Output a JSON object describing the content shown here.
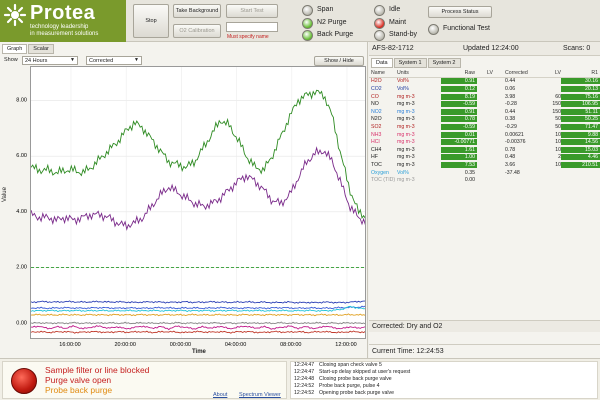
{
  "brand": {
    "name": "Protea",
    "tagline": [
      "technology leadership",
      "in measurement solutions"
    ]
  },
  "toolbar": {
    "stop": "Stop",
    "take_background": "Take Background",
    "o2_calibration": "O2 Calibration",
    "start_test": "Start Test",
    "name_warning": "Must specify name",
    "process_status": "Process Status"
  },
  "indicators": [
    {
      "label": "Span",
      "color": "#b9b8ae"
    },
    {
      "label": "N2 Purge",
      "color": "#5fba2a"
    },
    {
      "label": "Back Purge",
      "color": "#5fba2a"
    },
    {
      "label": "Idle",
      "color": "#b9b8ae"
    },
    {
      "label": "Maint",
      "color": "#d8261b"
    },
    {
      "label": "Stand-by",
      "color": "#b9b8ae"
    },
    {
      "label": "Functional Test",
      "color": "#b9b8ae"
    }
  ],
  "graph": {
    "tabs": [
      "Graph",
      "Scalar"
    ],
    "show_label": "Show",
    "range": "24 Hours",
    "mode": "Corrected",
    "show_hide": "Show / Hide",
    "ylabel": "Value",
    "xlabel": "Time"
  },
  "chart_data": {
    "type": "line",
    "ylabel": "Value",
    "xlabel": "Time",
    "ylim": [
      -0.6,
      9.2
    ],
    "y_ticks": [
      "8.00",
      "6.00",
      "4.00",
      "2.00",
      "0.00"
    ],
    "x_ticks": [
      "16:00:00",
      "20:00:00",
      "00:00:00",
      "04:00:00",
      "08:00:00",
      "12:00:00"
    ],
    "grid": true,
    "series": [
      {
        "color": "#2e8b22",
        "values": [
          5.6,
          5.5,
          5.5,
          5.4,
          5.5,
          5.5,
          5.4,
          5.6,
          5.9,
          6.2,
          6.5,
          6.9,
          7.2,
          7.0,
          6.6,
          6.2,
          5.8,
          5.7,
          5.6,
          5.8,
          6.3,
          6.8,
          7.3,
          7.1,
          6.6,
          6.0,
          5.6,
          5.5,
          6.0,
          6.7,
          7.4,
          8.0,
          8.2,
          8.3,
          8.2,
          7.4,
          6.0,
          4.8,
          4.0,
          3.8
        ]
      },
      {
        "color": "#7a2a8a",
        "values": [
          3.9,
          3.8,
          3.8,
          3.7,
          3.8,
          3.7,
          3.8,
          3.9,
          3.9,
          3.8,
          3.6,
          3.5,
          3.6,
          3.8,
          4.2,
          4.6,
          4.9,
          4.7,
          4.5,
          4.3,
          4.2,
          4.3,
          4.5,
          4.8,
          5.1,
          5.3,
          5.1,
          4.8,
          4.4,
          4.3,
          4.6,
          5.2,
          5.8,
          6.1,
          6.2,
          5.8,
          5.0,
          4.2,
          3.8,
          3.6
        ]
      },
      {
        "color": "#2b3fb5",
        "values": [
          0.75,
          0.78,
          0.77,
          0.76,
          0.78,
          0.77,
          0.76,
          0.77,
          0.78,
          0.76,
          0.77,
          0.76,
          0.75,
          0.76,
          0.77,
          0.76,
          0.75,
          0.76,
          0.77,
          0.75,
          0.76,
          0.77,
          0.76,
          0.75,
          0.76,
          0.77,
          0.75,
          0.76,
          0.74,
          0.75,
          0.76,
          0.74,
          0.75,
          0.74,
          0.76,
          0.75,
          0.74,
          0.76,
          0.78,
          0.8
        ]
      },
      {
        "color": "#3b5bd8",
        "values": [
          0.55,
          0.55,
          0.54,
          0.55,
          0.56,
          0.55,
          0.54,
          0.55,
          0.56,
          0.55,
          0.54,
          0.55,
          0.55,
          0.54,
          0.55,
          0.56,
          0.55,
          0.54,
          0.55,
          0.55,
          0.54,
          0.55,
          0.56,
          0.55,
          0.54,
          0.55,
          0.55,
          0.54,
          0.55,
          0.56,
          0.55,
          0.54,
          0.55,
          0.55,
          0.54,
          0.55,
          0.56,
          0.57,
          0.58,
          0.6
        ]
      },
      {
        "color": "#22c4d8",
        "values": [
          0.45,
          0.45,
          0.46,
          0.45,
          0.45,
          0.46,
          0.45,
          0.45,
          0.46,
          0.45,
          0.45,
          0.46,
          0.45,
          0.45,
          0.46,
          0.45,
          0.45,
          0.46,
          0.45,
          0.45,
          0.46,
          0.45,
          0.45,
          0.46,
          0.45,
          0.45,
          0.46,
          0.45,
          0.45,
          0.46,
          0.45,
          0.45,
          0.46,
          0.45,
          0.45,
          0.46,
          0.5,
          0.6,
          0.55,
          0.5
        ]
      },
      {
        "color": "#e0a020",
        "values": [
          0.3,
          0.31,
          0.3,
          0.3,
          0.31,
          0.3,
          0.3,
          0.31,
          0.3,
          0.3,
          0.31,
          0.3,
          0.3,
          0.31,
          0.3,
          0.3,
          0.31,
          0.3,
          0.3,
          0.31,
          0.3,
          0.3,
          0.31,
          0.3,
          0.3,
          0.31,
          0.3,
          0.3,
          0.31,
          0.3,
          0.3,
          0.31,
          0.3,
          0.3,
          0.31,
          0.3,
          0.3,
          0.31,
          0.3,
          0.3
        ]
      },
      {
        "color": "#888888",
        "values": [
          0.0,
          0.02,
          0.0,
          0.01,
          0.0,
          0.02,
          0.0,
          0.01,
          0.0,
          0.02,
          0.0,
          0.01,
          0.0,
          0.02,
          0.0,
          0.01,
          0.0,
          0.02,
          0.0,
          0.01,
          0.0,
          0.02,
          0.0,
          0.01,
          0.0,
          0.02,
          0.0,
          0.01,
          0.0,
          0.02,
          0.0,
          0.01,
          0.0,
          0.02,
          0.0,
          0.01,
          0.0,
          0.02,
          0.0,
          0.01
        ]
      },
      {
        "color": "#c01a8a",
        "values": [
          -0.15,
          -0.1,
          -0.2,
          -0.12,
          -0.18,
          -0.1,
          -0.2,
          -0.14,
          -0.1,
          -0.18,
          -0.12,
          -0.2,
          -0.15,
          -0.1,
          -0.18,
          -0.12,
          -0.2,
          -0.1,
          -0.15,
          -0.2,
          -0.12,
          -0.18,
          -0.1,
          -0.2,
          -0.14,
          -0.1,
          -0.18,
          -0.12,
          -0.2,
          -0.15,
          -0.1,
          -0.18,
          -0.12,
          -0.2,
          -0.1,
          -0.15,
          -0.2,
          -0.12,
          -0.18,
          -0.1
        ]
      },
      {
        "color": "#c0392b",
        "values": [
          -0.32,
          -0.3,
          -0.33,
          -0.31,
          -0.3,
          -0.33,
          -0.32,
          -0.3,
          -0.31,
          -0.33,
          -0.3,
          -0.32,
          -0.31,
          -0.3,
          -0.33,
          -0.31,
          -0.3,
          -0.32,
          -0.33,
          -0.3,
          -0.31,
          -0.32,
          -0.3,
          -0.33,
          -0.31,
          -0.3,
          -0.32,
          -0.33,
          -0.3,
          -0.31,
          -0.32,
          -0.3,
          -0.33,
          -0.31,
          -0.3,
          -0.32,
          -0.33,
          -0.3,
          -0.31,
          -0.32
        ]
      }
    ],
    "reference_line": {
      "value": 2.0,
      "color": "#2e9b2e"
    }
  },
  "analyzer": {
    "id": "AFS-82-1712",
    "updated": "Updated 12:24:00",
    "scans": "Scans: 0",
    "tabs": [
      "Data",
      "System 1",
      "System 2"
    ],
    "headers": [
      "Name",
      "Units",
      "Raw",
      "LV",
      "Corrected",
      "LV",
      "R1"
    ],
    "rows": [
      {
        "name": "H2O",
        "units": "Vol%",
        "raw": "0.91",
        "lv": "",
        "cor": "0.44",
        "lv2": "",
        "r1": "30.16",
        "color": "#b01e1e",
        "green_raw": true
      },
      {
        "name": "CO2",
        "units": "Vol%",
        "raw": "0.12",
        "lv": "",
        "cor": "0.06",
        "lv2": "",
        "r1": "20.13",
        "color": "#1e3aa0",
        "green_raw": true
      },
      {
        "name": "CO",
        "units": "mg m-3",
        "raw": "8.19",
        "lv": "",
        "cor": "3.98",
        "lv2": "60",
        "r1": "75.16",
        "color": "#b01e1e",
        "green_raw": true
      },
      {
        "name": "NO",
        "units": "mg m-3",
        "raw": "-0.59",
        "lv": "",
        "cor": "-0.28",
        "lv2": "150",
        "r1": "106.95",
        "color": "#222",
        "green_raw": true
      },
      {
        "name": "NO2",
        "units": "mg m-3",
        "raw": "0.91",
        "lv": "",
        "cor": "0.44",
        "lv2": "150",
        "r1": "51.11",
        "color": "#2a7fd8",
        "green_raw": true
      },
      {
        "name": "N2O",
        "units": "mg m-3",
        "raw": "0.78",
        "lv": "",
        "cor": "0.38",
        "lv2": "50",
        "r1": "50.25",
        "color": "#222",
        "green_raw": true
      },
      {
        "name": "SO2",
        "units": "mg m-3",
        "raw": "-0.59",
        "lv": "",
        "cor": "-0.29",
        "lv2": "50",
        "r1": "71.47",
        "color": "#b01e1e",
        "green_raw": true
      },
      {
        "name": "NH3",
        "units": "mg m-3",
        "raw": "0.01",
        "lv": "",
        "cor": "0.00621",
        "lv2": "10",
        "r1": "9.88",
        "color": "#d8306a",
        "green_raw": true
      },
      {
        "name": "HCl",
        "units": "mg m-3",
        "raw": "-0.00771",
        "lv": "",
        "cor": "-0.00376",
        "lv2": "10",
        "r1": "14.56",
        "color": "#d8306a",
        "green_raw": true
      },
      {
        "name": "CH4",
        "units": "mg m-3",
        "raw": "1.61",
        "lv": "",
        "cor": "0.78",
        "lv2": "10",
        "r1": "15.03",
        "color": "#222",
        "green_raw": true
      },
      {
        "name": "HF",
        "units": "mg m-3",
        "raw": "1.00",
        "lv": "",
        "cor": "0.48",
        "lv2": "2",
        "r1": "4.46",
        "color": "#222",
        "green_raw": true
      },
      {
        "name": "TOC",
        "units": "mg m-3",
        "raw": "7.53",
        "lv": "",
        "cor": "3.66",
        "lv2": "10",
        "r1": "210.51",
        "color": "#222",
        "green_raw": true
      },
      {
        "name": "Oxygen",
        "units": "Vol%",
        "raw": "0.35",
        "lv": "",
        "cor": "-37.48",
        "lv2": "",
        "r1": "",
        "color": "#2a9fd8",
        "green_raw": false
      },
      {
        "name": "TOC (TID)",
        "units": "mg m-3",
        "raw": "0.00",
        "lv": "",
        "cor": "",
        "lv2": "",
        "r1": "",
        "color": "#999",
        "green_raw": false
      }
    ],
    "corrected": "Corrected: Dry and O2",
    "current_time": "Current Time: 12:24:53"
  },
  "alarms": {
    "lines": [
      {
        "text": "Sample filter or line blocked",
        "color": "#c41e1e"
      },
      {
        "text": "Purge valve open",
        "color": "#c41e1e"
      },
      {
        "text": "Probe back purge",
        "color": "#e08a10"
      }
    ],
    "about": "About",
    "spectrum_viewer": "Spectrum Viewer"
  },
  "log": [
    {
      "time": "12:24:47",
      "msg": "Closing span check valve 5"
    },
    {
      "time": "12:24:47",
      "msg": "Start-up delay skipped at user's request"
    },
    {
      "time": "12:24:48",
      "msg": "Closing probe back purge valve"
    },
    {
      "time": "12:24:52",
      "msg": "Probe back purge, pulse 4"
    },
    {
      "time": "12:24:52",
      "msg": "Opening probe back purge valve"
    }
  ]
}
